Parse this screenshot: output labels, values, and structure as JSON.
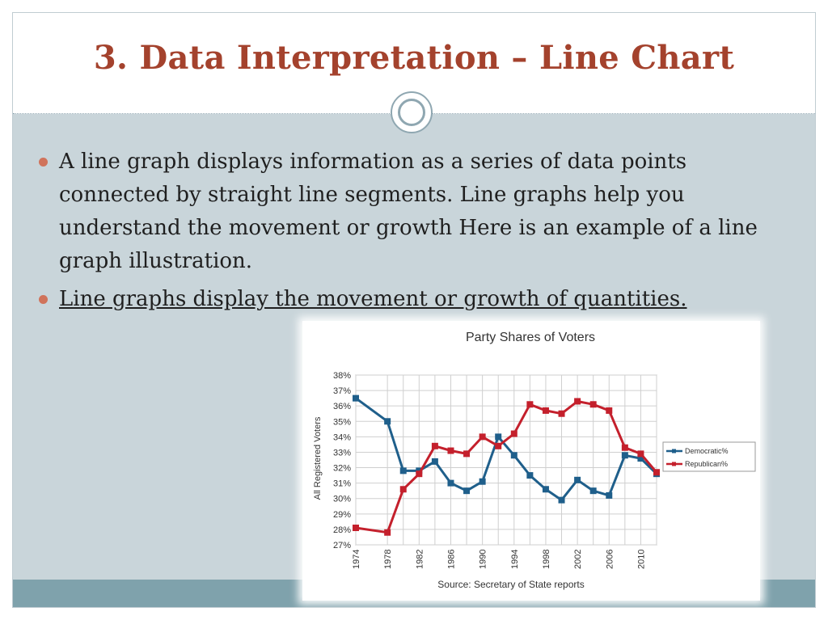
{
  "slide": {
    "title": "3. Data Interpretation – Line Chart",
    "bullets": [
      "A line graph displays information as a series of data points connected by straight line segments. Line graphs help you understand the movement or growth Here is an example of a line graph illustration.",
      " Line graphs display the movement or growth of quantities."
    ]
  },
  "colors": {
    "title": "#a4422d",
    "bullet": "#d0735b",
    "democratic": "#1f5f8b",
    "republican": "#c4202c"
  },
  "chart_data": {
    "type": "line",
    "title": "Party Shares of Voters",
    "xlabel": "Source: Secretary of State reports",
    "ylabel": "All Registered Voters",
    "x": [
      1974,
      1978,
      1980,
      1982,
      1984,
      1986,
      1988,
      1990,
      1992,
      1994,
      1996,
      1998,
      2000,
      2002,
      2004,
      2006,
      2008,
      2010,
      2012
    ],
    "x_ticks": [
      "1974",
      "1978",
      "1982",
      "1986",
      "1990",
      "1994",
      "1998",
      "2002",
      "2006",
      "2010"
    ],
    "ylim": [
      27,
      38
    ],
    "y_ticks": [
      "27%",
      "28%",
      "29%",
      "30%",
      "31%",
      "32%",
      "33%",
      "34%",
      "35%",
      "36%",
      "37%",
      "38%"
    ],
    "grid": true,
    "legend": "right",
    "series": [
      {
        "name": "Democratic%",
        "color": "#1f5f8b",
        "values": [
          36.5,
          35.0,
          31.8,
          31.8,
          32.4,
          31.0,
          30.5,
          31.1,
          34.0,
          32.8,
          31.5,
          30.6,
          29.9,
          31.2,
          30.5,
          30.2,
          32.8,
          32.6,
          31.6
        ]
      },
      {
        "name": "Republican%",
        "color": "#c4202c",
        "values": [
          28.1,
          27.8,
          30.6,
          31.6,
          33.4,
          33.1,
          32.9,
          34.0,
          33.4,
          34.2,
          36.1,
          35.7,
          35.5,
          36.3,
          36.1,
          35.7,
          33.3,
          32.9,
          31.7
        ]
      }
    ]
  }
}
